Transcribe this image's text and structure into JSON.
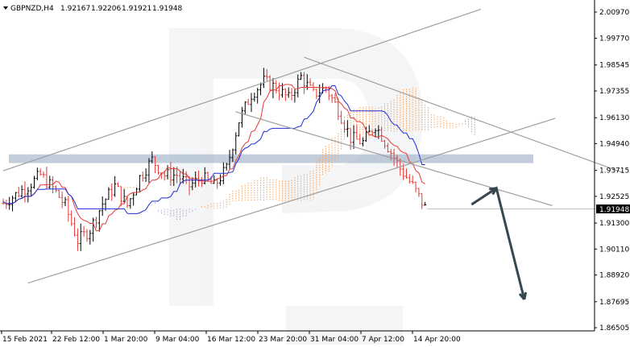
{
  "header": {
    "symbol": "GBPNZD,H4",
    "open": "1.92167",
    "high": "1.92206",
    "low": "1.91921",
    "close": "1.91948"
  },
  "price_axis": {
    "ticks": [
      "2.00970",
      "1.99770",
      "1.98545",
      "1.97355",
      "1.96130",
      "1.94940",
      "1.93715",
      "1.92525",
      "1.91300",
      "1.90110",
      "1.88920",
      "1.87695",
      "1.86505"
    ],
    "current_price": "1.91948"
  },
  "time_axis": {
    "ticks": [
      "15 Feb 2021",
      "22 Feb 12:00",
      "1 Mar 20:00",
      "9 Mar 04:00",
      "16 Mar 12:00",
      "23 Mar 20:00",
      "31 Mar 04:00",
      "7 Apr 12:00",
      "14 Apr 20:00"
    ]
  },
  "colors": {
    "bull_candle": "#000000",
    "bear_candle": "#e53935",
    "tenkan_line": "#e53935",
    "kijun_line": "#1e2bd6",
    "kumo_bull": "#f4a460",
    "kumo_bear": "#b39ddb",
    "channel": "#9e9e9e",
    "resistance_zone": "#8fa6bd",
    "forecast_arrow": "#37474f",
    "price_label_bg": "#000000"
  },
  "chart_data": {
    "type": "candlestick",
    "ylim": [
      1.86505,
      2.0097
    ],
    "y_ticks": [
      2.0097,
      1.9977,
      1.98545,
      1.97355,
      1.9613,
      1.9494,
      1.93715,
      1.92525,
      1.913,
      1.9011,
      1.8892,
      1.87695,
      1.86505
    ],
    "x_ticks": [
      "15 Feb 2021",
      "22 Feb 12:00",
      "1 Mar 20:00",
      "9 Mar 04:00",
      "16 Mar 12:00",
      "23 Mar 20:00",
      "31 Mar 04:00",
      "7 Apr 12:00",
      "14 Apr 20:00"
    ],
    "last_price": 1.91948,
    "resistance_zone": [
      1.9405,
      1.9445
    ],
    "trendlines": [
      {
        "name": "ascending-channel-upper",
        "p1": [
          0,
          1.937
        ],
        "p2": [
          154,
          2.011
        ]
      },
      {
        "name": "ascending-channel-lower",
        "p1": [
          8,
          1.8855
        ],
        "p2": [
          178,
          1.961
        ]
      },
      {
        "name": "descending-channel-upper",
        "p1": [
          97,
          1.989
        ],
        "p2": [
          200,
          1.936
        ]
      },
      {
        "name": "descending-channel-lower",
        "p1": [
          75,
          1.964
        ],
        "p2": [
          177,
          1.921
        ]
      }
    ],
    "forecast": [
      [
        151,
        1.9215
      ],
      [
        159,
        1.929
      ],
      [
        168,
        1.878
      ]
    ]
  }
}
